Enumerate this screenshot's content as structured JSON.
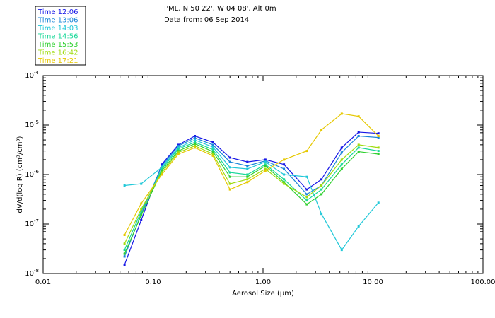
{
  "chart_data": {
    "type": "line",
    "title": "PML, N 50 22', W 04 08', Alt 0m",
    "subtitle": "Data from: 06 Sep 2014",
    "xlabel": "Aerosol Size (μm)",
    "ylabel": "dV/d(log R) (cm³/cm³)",
    "xscale": "log",
    "yscale": "log",
    "xlim": [
      0.01,
      100
    ],
    "ylim": [
      1e-08,
      0.0001
    ],
    "xticks": [
      {
        "value": 0.01,
        "label": "0.01"
      },
      {
        "value": 0.1,
        "label": "0.10"
      },
      {
        "value": 1,
        "label": "1.00"
      },
      {
        "value": 10,
        "label": "10.00"
      },
      {
        "value": 100,
        "label": "100.00"
      }
    ],
    "yticks": [
      {
        "value": 1e-08,
        "base": "10",
        "exp": "-8"
      },
      {
        "value": 1e-07,
        "base": "10",
        "exp": "-7"
      },
      {
        "value": 1e-06,
        "base": "10",
        "exp": "-6"
      },
      {
        "value": 1e-05,
        "base": "10",
        "exp": "-5"
      },
      {
        "value": 0.0001,
        "base": "10",
        "exp": "-4"
      }
    ],
    "legend_position": "top-left, outside plot",
    "x": [
      0.055,
      0.078,
      0.12,
      0.17,
      0.24,
      0.35,
      0.5,
      0.72,
      1.05,
      1.55,
      2.5,
      3.4,
      5.2,
      7.4,
      11.2
    ],
    "series": [
      {
        "name": "Time 12:06",
        "color": "#1616e6",
        "values": [
          1.5e-08,
          1.2e-07,
          1.6e-06,
          4e-06,
          6e-06,
          4.5e-06,
          2.2e-06,
          1.8e-06,
          2e-06,
          1.6e-06,
          5e-07,
          8e-07,
          3.5e-06,
          7.2e-06,
          6.8e-06
        ]
      },
      {
        "name": "Time 13:06",
        "color": "#1a86d8",
        "values": [
          2.2e-08,
          1.6e-07,
          1.5e-06,
          3.8e-06,
          5.5e-06,
          4e-06,
          1.8e-06,
          1.5e-06,
          1.9e-06,
          1.3e-06,
          4e-07,
          6e-07,
          2.8e-06,
          6e-06,
          5.6e-06
        ]
      },
      {
        "name": "Time 14:03",
        "color": "#20c8d8",
        "values": [
          6e-07,
          6.5e-07,
          1.4e-06,
          3.5e-06,
          5e-06,
          3.6e-06,
          1.4e-06,
          1.3e-06,
          1.8e-06,
          1e-06,
          9e-07,
          1.6e-07,
          3e-08,
          9e-08,
          2.7e-07
        ]
      },
      {
        "name": "Time 14:56",
        "color": "#18d898",
        "values": [
          3e-08,
          1.8e-07,
          1.3e-06,
          3.3e-06,
          4.5e-06,
          3.2e-06,
          1.1e-06,
          1e-06,
          1.6e-06,
          8e-07,
          3e-07,
          5e-07,
          1.6e-06,
          3.5e-06,
          3e-06
        ]
      },
      {
        "name": "Time 15:53",
        "color": "#30d030",
        "values": [
          2.5e-08,
          1.5e-07,
          1.2e-06,
          3e-06,
          4.2e-06,
          2.9e-06,
          9e-07,
          9e-07,
          1.5e-06,
          7e-07,
          2.5e-07,
          4e-07,
          1.3e-06,
          2.9e-06,
          2.6e-06
        ]
      },
      {
        "name": "Time 16:42",
        "color": "#a0dc10",
        "values": [
          4e-08,
          2e-07,
          1.1e-06,
          2.8e-06,
          3.8e-06,
          2.6e-06,
          6.5e-07,
          8e-07,
          1.3e-06,
          6.5e-07,
          3.5e-07,
          6e-07,
          2e-06,
          4e-06,
          3.5e-06
        ]
      },
      {
        "name": "Time 17:21",
        "color": "#e6c800",
        "values": [
          6e-08,
          2.6e-07,
          1e-06,
          2.6e-06,
          3.5e-06,
          2.4e-06,
          5e-07,
          7e-07,
          1.2e-06,
          2e-06,
          3e-06,
          8e-06,
          1.7e-05,
          1.5e-05,
          6e-06
        ]
      }
    ]
  }
}
